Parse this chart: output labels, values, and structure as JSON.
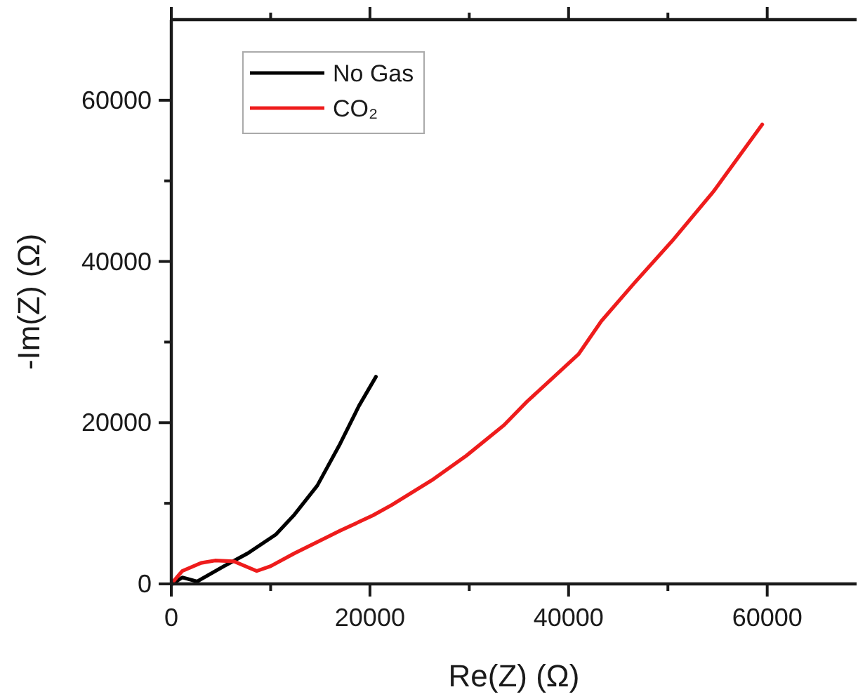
{
  "chart_data": {
    "type": "line",
    "xlabel": "Re(Z) (Ω)",
    "ylabel": "-Im(Z) (Ω)",
    "xlim": [
      0,
      69000
    ],
    "ylim": [
      0,
      70000
    ],
    "xticks": [
      0,
      {
        "value": 10000,
        "label": null
      },
      20000,
      {
        "value": 30000,
        "label": null
      },
      40000,
      {
        "value": 50000,
        "label": null
      },
      60000
    ],
    "yticks": [
      0,
      {
        "value": 10000,
        "label": null
      },
      20000,
      {
        "value": 30000,
        "label": null
      },
      40000,
      {
        "value": 50000,
        "label": null
      },
      60000
    ],
    "grid": false,
    "legend": "top left",
    "series": [
      {
        "name": "No Gas",
        "color": "#000000",
        "x": [
          100,
          1100,
          2600,
          5300,
          7700,
          10500,
          12400,
          14700,
          17000,
          18900,
          20600
        ],
        "values": [
          0,
          800,
          300,
          2200,
          3800,
          6100,
          8600,
          12200,
          17400,
          22100,
          25700
        ]
      },
      {
        "name": "CO₂",
        "color": "#ee1c1c",
        "x": [
          0,
          1100,
          3000,
          4400,
          6300,
          8600,
          10000,
          12400,
          17000,
          20300,
          22200,
          26400,
          29700,
          33500,
          35800,
          41000,
          43300,
          46600,
          50400,
          54600,
          59500
        ],
        "values": [
          0,
          1600,
          2600,
          2900,
          2800,
          1600,
          2200,
          3800,
          6600,
          8500,
          9800,
          13000,
          15900,
          19700,
          22600,
          28500,
          32600,
          37300,
          42500,
          48700,
          57000
        ]
      }
    ]
  }
}
